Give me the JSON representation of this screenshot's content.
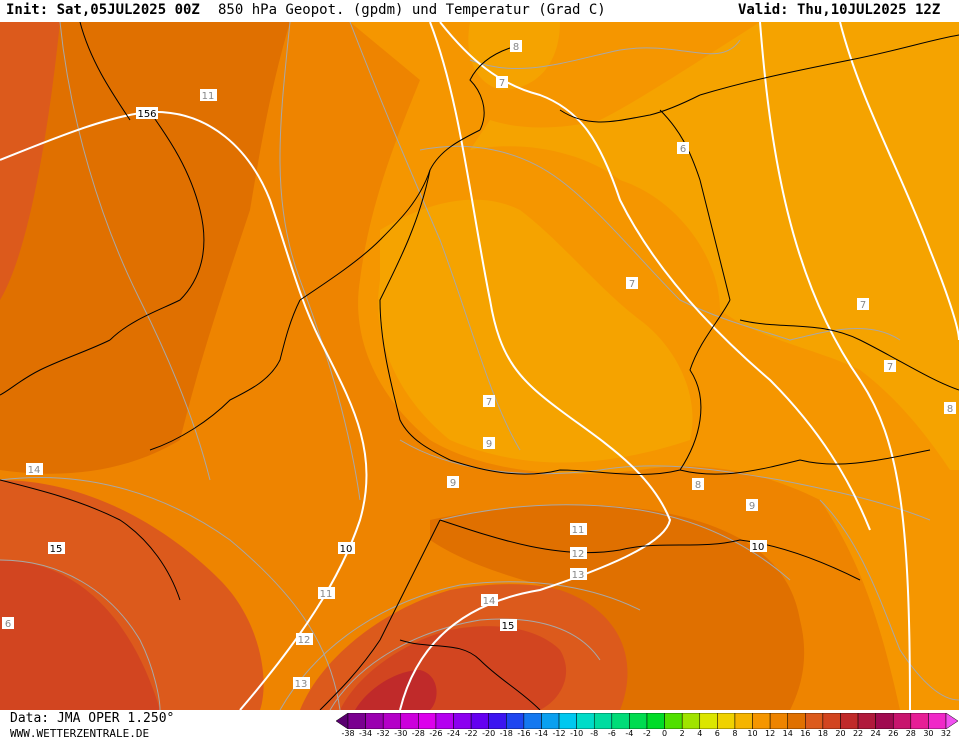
{
  "header": {
    "init": "Init: Sat,05JUL2025 00Z",
    "title": "850 hPa Geopot. (gpdm) und Temperatur (Grad C)",
    "valid": "Valid: Thu,10JUL2025 12Z"
  },
  "footer": {
    "data_source": "Data: JMA OPER 1.250°",
    "website": "WWW.WETTERZENTRALE.DE"
  },
  "colors": {
    "temp_5_7": "#f5a300",
    "temp_7_9": "#f59600",
    "temp_9_11": "#ee8400",
    "temp_11_13": "#e07000",
    "temp_13_15": "#dc5a1c",
    "temp_15_17": "#d24520",
    "temp_17_19": "#c02a2a"
  },
  "legend": {
    "ticks": [
      "-38",
      "-34",
      "-32",
      "-30",
      "-28",
      "-26",
      "-24",
      "-22",
      "-20",
      "-18",
      "-16",
      "-14",
      "-12",
      "-10",
      "-8",
      "-6",
      "-4",
      "-2",
      "0",
      "2",
      "4",
      "6",
      "8",
      "10",
      "12",
      "14",
      "16",
      "18",
      "20",
      "22",
      "24",
      "26",
      "28",
      "30",
      "32"
    ],
    "colors": [
      "#5a0070",
      "#7a0090",
      "#9a00b0",
      "#b400c8",
      "#cc00dc",
      "#dc00ec",
      "#b400f0",
      "#8c00f0",
      "#6400f0",
      "#3c14f0",
      "#1e46f0",
      "#1478f0",
      "#0aa0f0",
      "#00c8f0",
      "#00dcc8",
      "#00dca0",
      "#00dc78",
      "#00dc50",
      "#00dc28",
      "#50e000",
      "#a0e400",
      "#dce600",
      "#f0d200",
      "#f5b400",
      "#f59600",
      "#ee8400",
      "#e07000",
      "#dc5a1c",
      "#d24520",
      "#c02a2a",
      "#b01a3c",
      "#a00a50",
      "#c8146e",
      "#e61e96",
      "#f028c8",
      "#f050f0"
    ]
  },
  "labels": {
    "isotherms": [
      "8",
      "7",
      "11",
      "6",
      "7",
      "7",
      "7",
      "7",
      "8",
      "9",
      "8",
      "9",
      "14",
      "15",
      "11",
      "10",
      "12",
      "13",
      "14",
      "15",
      "11",
      "12",
      "13",
      "10",
      "6"
    ],
    "geopotential": [
      "156"
    ]
  }
}
